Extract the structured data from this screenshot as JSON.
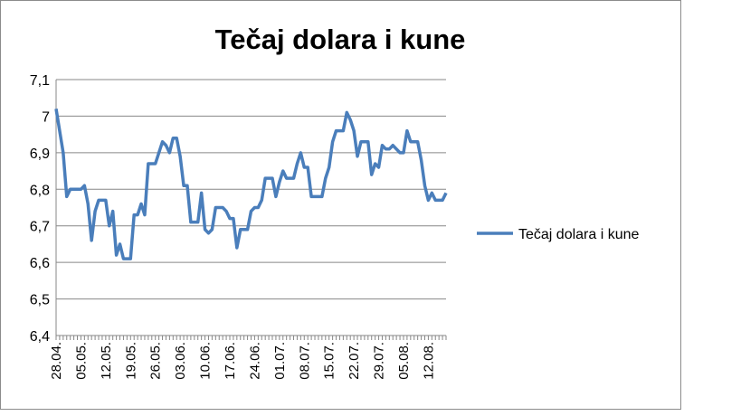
{
  "chart_data": {
    "type": "line",
    "title": "Tečaj dolara i kune",
    "categories": [
      "28.04.",
      null,
      null,
      null,
      null,
      null,
      null,
      "05.05.",
      null,
      null,
      null,
      null,
      null,
      null,
      "12.05.",
      null,
      null,
      null,
      null,
      null,
      null,
      "19.05.",
      null,
      null,
      null,
      null,
      null,
      null,
      "26.05.",
      null,
      null,
      null,
      null,
      null,
      null,
      "03.06.",
      null,
      null,
      null,
      null,
      null,
      null,
      "10.06.",
      null,
      null,
      null,
      null,
      null,
      null,
      "17.06.",
      null,
      null,
      null,
      null,
      null,
      null,
      "24.06.",
      null,
      null,
      null,
      null,
      null,
      null,
      "01.07.",
      null,
      null,
      null,
      null,
      null,
      null,
      "08.07.",
      null,
      null,
      null,
      null,
      null,
      null,
      "15.07.",
      null,
      null,
      null,
      null,
      null,
      null,
      "22.07.",
      null,
      null,
      null,
      null,
      null,
      null,
      "29.07.",
      null,
      null,
      null,
      null,
      null,
      null,
      "05.08.",
      null,
      null,
      null,
      null,
      null,
      null,
      "12.08.",
      null,
      null,
      null,
      null,
      null
    ],
    "series": [
      {
        "name": "Tečaj dolara i kune",
        "color": "#4a7ebb",
        "values": [
          7.02,
          6.96,
          6.9,
          6.78,
          6.8,
          6.8,
          6.8,
          6.8,
          6.81,
          6.76,
          6.66,
          6.74,
          6.77,
          6.77,
          6.77,
          6.7,
          6.74,
          6.62,
          6.65,
          6.61,
          6.61,
          6.61,
          6.73,
          6.73,
          6.76,
          6.73,
          6.87,
          6.87,
          6.87,
          6.9,
          6.93,
          6.92,
          6.9,
          6.94,
          6.94,
          6.89,
          6.81,
          6.81,
          6.71,
          6.71,
          6.71,
          6.79,
          6.69,
          6.68,
          6.69,
          6.75,
          6.75,
          6.75,
          6.74,
          6.72,
          6.72,
          6.64,
          6.69,
          6.69,
          6.69,
          6.74,
          6.75,
          6.75,
          6.77,
          6.83,
          6.83,
          6.83,
          6.78,
          6.82,
          6.85,
          6.83,
          6.83,
          6.83,
          6.87,
          6.9,
          6.86,
          6.86,
          6.78,
          6.78,
          6.78,
          6.78,
          6.83,
          6.86,
          6.93,
          6.96,
          6.96,
          6.96,
          7.01,
          6.99,
          6.96,
          6.89,
          6.93,
          6.93,
          6.93,
          6.84,
          6.87,
          6.86,
          6.92,
          6.91,
          6.91,
          6.92,
          6.91,
          6.9,
          6.9,
          6.96,
          6.93,
          6.93,
          6.93,
          6.88,
          6.81,
          6.77,
          6.79,
          6.77,
          6.77,
          6.77,
          6.79
        ]
      }
    ],
    "ylim": [
      6.4,
      7.1
    ],
    "yticks": [
      {
        "value": 6.4,
        "label": "6,4"
      },
      {
        "value": 6.5,
        "label": "6,5"
      },
      {
        "value": 6.6,
        "label": "6,6"
      },
      {
        "value": 6.7,
        "label": "6,7"
      },
      {
        "value": 6.8,
        "label": "6,8"
      },
      {
        "value": 6.9,
        "label": "6,9"
      },
      7,
      {
        "value": 7.1,
        "label": "7,1"
      }
    ],
    "grid": true,
    "legend": "right"
  }
}
